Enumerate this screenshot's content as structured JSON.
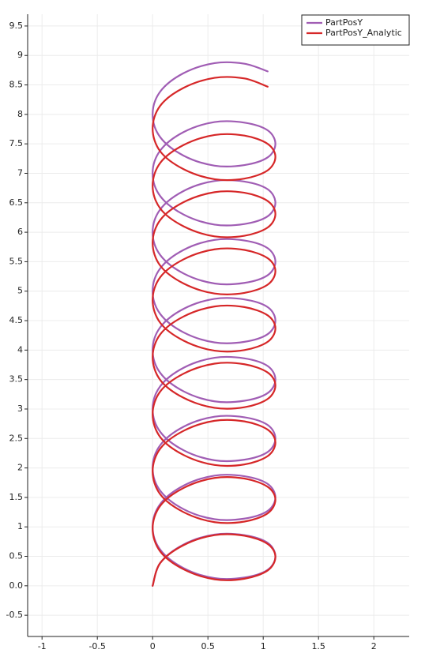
{
  "chart_data": {
    "type": "line",
    "x": [
      0,
      0.07,
      0.28,
      0.56,
      0.83,
      1.04,
      1.11,
      1.04,
      0.83,
      0.56,
      0.28,
      0.07,
      0,
      0.07,
      0.28,
      0.56,
      0.83,
      1.04,
      1.11,
      1.04,
      0.83,
      0.56,
      0.28,
      0.07,
      0,
      0.07,
      0.28,
      0.56,
      0.83,
      1.04,
      1.11,
      1.04,
      0.83,
      0.56,
      0.28,
      0.07,
      0,
      0.07,
      0.28,
      0.56,
      0.83,
      1.04,
      1.11,
      1.04,
      0.83,
      0.56,
      0.28,
      0.07,
      0,
      0.07,
      0.28,
      0.56,
      0.83,
      1.04,
      1.11,
      1.04,
      0.83,
      0.56,
      0.28,
      0.07,
      0,
      0.07,
      0.28,
      0.56,
      0.83,
      1.04,
      1.11,
      1.04,
      0.83,
      0.56,
      0.28,
      0.07,
      0,
      0.07,
      0.28,
      0.56,
      0.83,
      1.04,
      1.11,
      1.04,
      0.83,
      0.56,
      0.28,
      0.07,
      0,
      0.07,
      0.28,
      0.56,
      0.83,
      1.04,
      1.11,
      1.04,
      0.83,
      0.56,
      0.28,
      0.07,
      0,
      0.07,
      0.28,
      0.56,
      0.83,
      1.04
    ],
    "series": [
      {
        "name": "PartPosY",
        "color": "#a05db4",
        "values": [
          0,
          0.39,
          0.7,
          0.87,
          0.86,
          0.73,
          0.5,
          0.27,
          0.14,
          0.13,
          0.3,
          0.61,
          1,
          1.39,
          1.7,
          1.87,
          1.86,
          1.73,
          1.5,
          1.27,
          1.14,
          1.13,
          1.3,
          1.61,
          2,
          2.39,
          2.7,
          2.87,
          2.86,
          2.73,
          2.5,
          2.27,
          2.14,
          2.13,
          2.3,
          2.61,
          3,
          3.39,
          3.7,
          3.87,
          3.86,
          3.73,
          3.5,
          3.27,
          3.14,
          3.13,
          3.3,
          3.61,
          4,
          4.39,
          4.7,
          4.87,
          4.86,
          4.73,
          4.5,
          4.27,
          4.14,
          4.13,
          4.3,
          4.61,
          5,
          5.39,
          5.7,
          5.87,
          5.86,
          5.73,
          5.5,
          5.27,
          5.14,
          5.13,
          5.3,
          5.61,
          6,
          6.39,
          6.7,
          6.87,
          6.86,
          6.73,
          6.5,
          6.27,
          6.14,
          6.13,
          6.3,
          6.61,
          7,
          7.39,
          7.7,
          7.87,
          7.86,
          7.73,
          7.5,
          7.27,
          7.14,
          7.13,
          7.3,
          7.61,
          8,
          8.39,
          8.7,
          8.87,
          8.86,
          8.73
        ]
      },
      {
        "name": "PartPosY_Analytic",
        "color": "#d62728",
        "values": [
          0,
          0.39,
          0.69,
          0.86,
          0.85,
          0.71,
          0.49,
          0.26,
          0.12,
          0.11,
          0.28,
          0.58,
          0.97,
          1.36,
          1.66,
          1.83,
          1.82,
          1.68,
          1.46,
          1.23,
          1.09,
          1.08,
          1.25,
          1.55,
          1.94,
          2.33,
          2.63,
          2.8,
          2.79,
          2.65,
          2.43,
          2.2,
          2.06,
          2.05,
          2.22,
          2.52,
          2.91,
          3.3,
          3.6,
          3.77,
          3.76,
          3.62,
          3.4,
          3.17,
          3.03,
          3.02,
          3.19,
          3.49,
          3.88,
          4.27,
          4.57,
          4.74,
          4.73,
          4.59,
          4.37,
          4.14,
          4.0,
          3.99,
          4.16,
          4.46,
          4.85,
          5.24,
          5.54,
          5.71,
          5.7,
          5.56,
          5.34,
          5.11,
          4.97,
          4.96,
          5.13,
          5.43,
          5.82,
          6.21,
          6.51,
          6.68,
          6.67,
          6.53,
          6.31,
          6.08,
          5.94,
          5.93,
          6.1,
          6.4,
          6.79,
          7.18,
          7.48,
          7.65,
          7.64,
          7.5,
          7.28,
          7.05,
          6.91,
          6.9,
          7.07,
          7.37,
          7.76,
          8.15,
          8.45,
          8.62,
          8.61,
          8.47
        ]
      }
    ],
    "xlim": [
      -1.13,
      2.32
    ],
    "ylim": [
      -0.86,
      9.7
    ],
    "xticks": [
      -1,
      -0.5,
      0,
      0.5,
      1,
      1.5,
      2
    ],
    "yticks": [
      -0.5,
      {
        "value": 0,
        "label": "0.0"
      },
      0.5,
      1,
      1.5,
      2,
      2.5,
      3,
      3.5,
      4,
      4.5,
      5,
      5.5,
      6,
      6.5,
      7,
      7.5,
      8,
      8.5,
      9,
      9.5
    ],
    "grid": true,
    "legend": "upper right"
  }
}
